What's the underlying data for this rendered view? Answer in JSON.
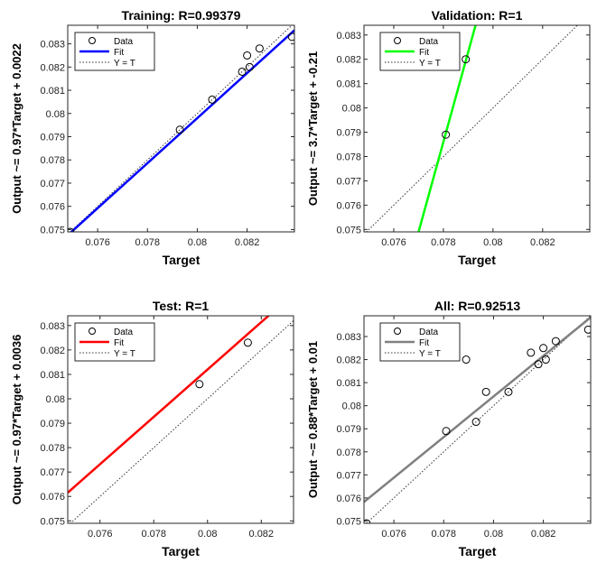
{
  "chart_data": [
    {
      "type": "scatter",
      "title": "Training: R=0.99379",
      "xlabel": "Target",
      "ylabel": "Output ~= 0.97*Target + 0.0022",
      "xlim": [
        0.0748,
        0.0839
      ],
      "ylim": [
        0.0749,
        0.0838
      ],
      "xticks": [
        "0.076",
        "0.078",
        "0.08",
        "0.082"
      ],
      "yticks": [
        "0.075",
        "0.076",
        "0.077",
        "0.078",
        "0.079",
        "0.08",
        "0.081",
        "0.082",
        "0.083"
      ],
      "points": [
        [
          0.0749,
          0.0749
        ],
        [
          0.0793,
          0.0793
        ],
        [
          0.0806,
          0.0806
        ],
        [
          0.0818,
          0.0818
        ],
        [
          0.082,
          0.0825
        ],
        [
          0.0821,
          0.082
        ],
        [
          0.0825,
          0.0828
        ],
        [
          0.0838,
          0.0833
        ]
      ],
      "fit": {
        "slope": 0.97,
        "intercept": 0.0022
      },
      "fit_color": "#0000ff",
      "legend": [
        "Data",
        "Fit",
        "Y = T"
      ]
    },
    {
      "type": "scatter",
      "title": "Validation: R=1",
      "xlabel": "Target",
      "ylabel": "Output ~= 3.7*Target + -0.21",
      "xlim": [
        0.0748,
        0.0839
      ],
      "ylim": [
        0.0749,
        0.0834
      ],
      "xticks": [
        "0.076",
        "0.078",
        "0.08",
        "0.082"
      ],
      "yticks": [
        "0.075",
        "0.076",
        "0.077",
        "0.078",
        "0.079",
        "0.08",
        "0.081",
        "0.082",
        "0.083"
      ],
      "points": [
        [
          0.0781,
          0.0789
        ],
        [
          0.0789,
          0.082
        ]
      ],
      "fit": {
        "slope": 3.7,
        "intercept": -0.21
      },
      "fit_color": "#00ff00",
      "legend": [
        "Data",
        "Fit",
        "Y = T"
      ]
    },
    {
      "type": "scatter",
      "title": "Test: R=1",
      "xlabel": "Target",
      "ylabel": "Output ~= 0.97*Target + 0.0036",
      "xlim": [
        0.0748,
        0.0832
      ],
      "ylim": [
        0.0749,
        0.0834
      ],
      "xticks": [
        "0.076",
        "0.078",
        "0.08",
        "0.082"
      ],
      "yticks": [
        "0.075",
        "0.076",
        "0.077",
        "0.078",
        "0.079",
        "0.08",
        "0.081",
        "0.082",
        "0.083"
      ],
      "points": [
        [
          0.0797,
          0.0806
        ],
        [
          0.0815,
          0.0823
        ]
      ],
      "fit": {
        "slope": 0.97,
        "intercept": 0.0036
      },
      "fit_color": "#ff0000",
      "legend": [
        "Data",
        "Fit",
        "Y = T"
      ]
    },
    {
      "type": "scatter",
      "title": "All: R=0.92513",
      "xlabel": "Target",
      "ylabel": "Output ~= 0.88*Target + 0.01",
      "xlim": [
        0.0748,
        0.0839
      ],
      "ylim": [
        0.0749,
        0.0839
      ],
      "xticks": [
        "0.076",
        "0.078",
        "0.08",
        "0.082"
      ],
      "yticks": [
        "0.075",
        "0.076",
        "0.077",
        "0.078",
        "0.079",
        "0.08",
        "0.081",
        "0.082",
        "0.083"
      ],
      "points": [
        [
          0.0749,
          0.0749
        ],
        [
          0.0781,
          0.0789
        ],
        [
          0.0789,
          0.082
        ],
        [
          0.0793,
          0.0793
        ],
        [
          0.0797,
          0.0806
        ],
        [
          0.0806,
          0.0806
        ],
        [
          0.0815,
          0.0823
        ],
        [
          0.0818,
          0.0818
        ],
        [
          0.082,
          0.0825
        ],
        [
          0.0821,
          0.082
        ],
        [
          0.0825,
          0.0828
        ],
        [
          0.0838,
          0.0833
        ]
      ],
      "fit": {
        "slope": 0.88,
        "intercept": 0.01
      },
      "fit_color": "#808080",
      "legend": [
        "Data",
        "Fit",
        "Y = T"
      ]
    }
  ]
}
